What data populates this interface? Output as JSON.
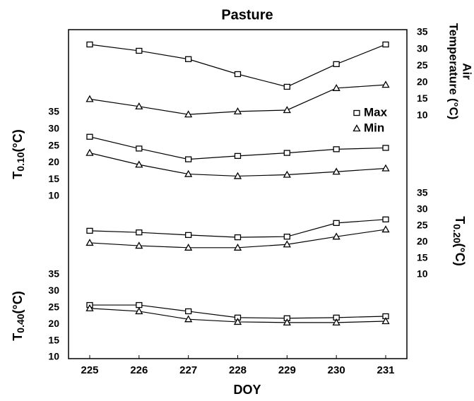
{
  "chart_data": [
    {
      "type": "line",
      "title": "Pasture",
      "yaxis": "right",
      "ylabel": [
        "Air",
        "Temperature (°C)"
      ],
      "legend": "right",
      "x": [
        225,
        226,
        227,
        228,
        229,
        230,
        231
      ],
      "ylim": [
        10,
        35
      ],
      "yticks": [
        10,
        15,
        20,
        25,
        30,
        35
      ],
      "series": [
        {
          "name": "Max",
          "marker": "square",
          "color": "#000000",
          "values": [
            31.4,
            29.5,
            27.0,
            22.5,
            18.7,
            25.5,
            31.4
          ]
        },
        {
          "name": "Min",
          "marker": "triangle",
          "color": "#000000",
          "values": [
            15.0,
            12.8,
            10.4,
            11.3,
            11.7,
            18.3,
            19.3
          ]
        }
      ]
    },
    {
      "type": "line",
      "yaxis": "left",
      "ylabel": [
        "T",
        "0.10",
        "(°C)"
      ],
      "x": [
        225,
        226,
        227,
        228,
        229,
        230,
        231
      ],
      "ylim": [
        10,
        35
      ],
      "yticks": [
        10,
        15,
        20,
        25,
        30,
        35
      ],
      "series": [
        {
          "marker": "square",
          "color": "#000000",
          "values": [
            27.7,
            24.2,
            21.0,
            22.0,
            22.9,
            24.0,
            24.4
          ]
        },
        {
          "marker": "triangle",
          "color": "#000000",
          "values": [
            22.9,
            19.4,
            16.6,
            16.0,
            16.4,
            17.3,
            18.3
          ]
        }
      ]
    },
    {
      "type": "line",
      "yaxis": "right",
      "ylabel": [
        "T",
        "0.20",
        "(°C)"
      ],
      "x": [
        225,
        226,
        227,
        228,
        229,
        230,
        231
      ],
      "ylim": [
        10,
        35
      ],
      "yticks": [
        10,
        15,
        20,
        25,
        30,
        35
      ],
      "series": [
        {
          "marker": "square",
          "color": "#000000",
          "values": [
            23.5,
            23.0,
            22.2,
            21.5,
            21.7,
            25.9,
            27.0
          ]
        },
        {
          "marker": "triangle",
          "color": "#000000",
          "values": [
            19.8,
            18.9,
            18.3,
            18.3,
            19.3,
            21.7,
            23.9
          ]
        }
      ]
    },
    {
      "type": "line",
      "yaxis": "left",
      "ylabel": [
        "T",
        "0.40",
        "(°C)"
      ],
      "xlabel": "DOY",
      "x": [
        225,
        226,
        227,
        228,
        229,
        230,
        231
      ],
      "xlim": [
        224.57,
        231.43
      ],
      "xticks": [
        225,
        226,
        227,
        228,
        229,
        230,
        231
      ],
      "ylim": [
        10,
        35
      ],
      "yticks": [
        10,
        15,
        20,
        25,
        30,
        35
      ],
      "series": [
        {
          "marker": "square",
          "color": "#000000",
          "values": [
            25.8,
            25.8,
            23.9,
            22.0,
            21.8,
            22.0,
            22.4
          ]
        },
        {
          "marker": "triangle",
          "color": "#000000",
          "values": [
            24.8,
            23.9,
            21.5,
            20.7,
            20.5,
            20.5,
            20.9
          ]
        }
      ]
    }
  ]
}
